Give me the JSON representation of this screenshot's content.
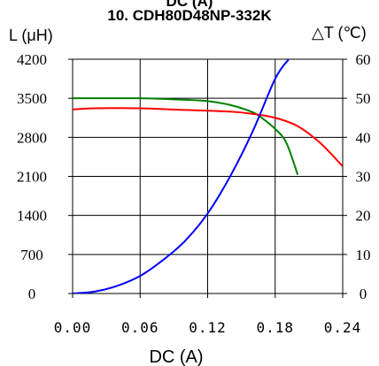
{
  "chart_data": {
    "type": "line",
    "top_cropped_text": "DC (A)",
    "title": "10. CDH80D48NP-332K",
    "left_axis_label": "L (μH)",
    "right_axis_label": "△T (℃)",
    "xlabel": "DC (A)",
    "xlim": [
      0,
      0.24
    ],
    "ylim_left": [
      0,
      4200
    ],
    "ylim_right": [
      0,
      60
    ],
    "x_ticks": [
      "0.00",
      "0.06",
      "0.12",
      "0.18",
      "0.24"
    ],
    "x_tick_values": [
      0,
      0.06,
      0.12,
      0.18,
      0.24
    ],
    "left_ticks": [
      "4200",
      "3500",
      "2800",
      "2100",
      "1400",
      "700",
      "0"
    ],
    "left_tick_values": [
      4200,
      3500,
      2800,
      2100,
      1400,
      700,
      0
    ],
    "right_ticks": [
      "60",
      "50",
      "40",
      "30",
      "20",
      "10",
      "0"
    ],
    "right_tick_values": [
      60,
      50,
      40,
      30,
      20,
      10,
      0
    ],
    "grid": true,
    "series": [
      {
        "color": "#008000",
        "axis": "left",
        "x": [
          0,
          0.03,
          0.06,
          0.09,
          0.12,
          0.14,
          0.16,
          0.17,
          0.18,
          0.19,
          0.2
        ],
        "y": [
          3500,
          3500,
          3500,
          3480,
          3450,
          3380,
          3250,
          3120,
          2950,
          2700,
          2130
        ]
      },
      {
        "color": "#ff0000",
        "axis": "left",
        "x": [
          0,
          0.02,
          0.06,
          0.1,
          0.14,
          0.16,
          0.18,
          0.2,
          0.22,
          0.24
        ],
        "y": [
          3300,
          3320,
          3320,
          3290,
          3260,
          3220,
          3150,
          3000,
          2700,
          2280
        ]
      },
      {
        "color": "#0000ff",
        "axis": "right",
        "x": [
          0,
          0.02,
          0.04,
          0.06,
          0.08,
          0.1,
          0.12,
          0.14,
          0.16,
          0.18,
          0.192
        ],
        "y": [
          0,
          0.5,
          2,
          4.5,
          8.5,
          13.5,
          20.5,
          30,
          41.5,
          55,
          60
        ]
      }
    ]
  }
}
